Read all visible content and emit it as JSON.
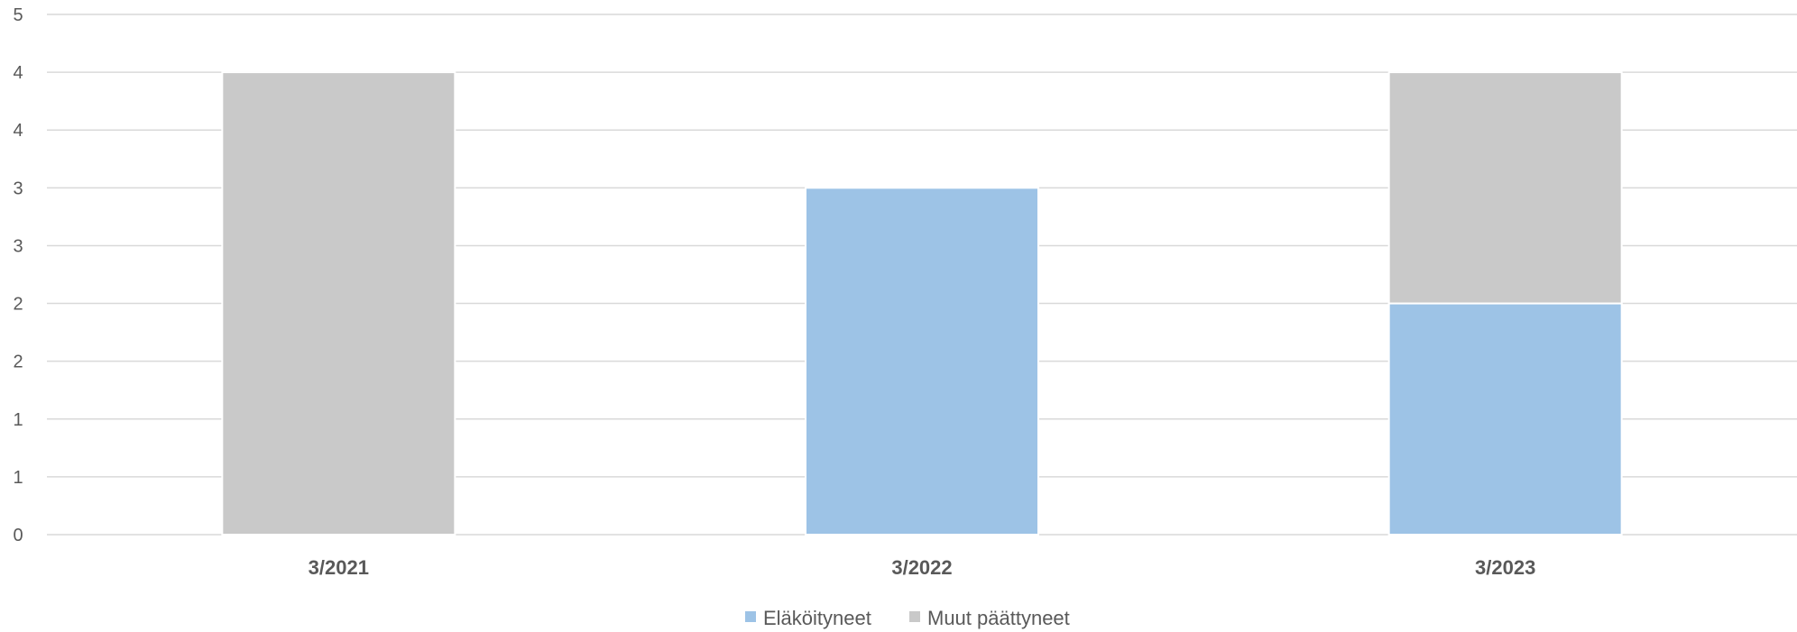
{
  "chart_data": {
    "type": "bar",
    "stacked": true,
    "categories": [
      "3/2021",
      "3/2022",
      "3/2023"
    ],
    "series": [
      {
        "name": "Eläköityneet",
        "values": [
          0,
          3,
          2
        ],
        "color": "#9DC3E6"
      },
      {
        "name": "Muut päättyneet",
        "values": [
          4,
          0,
          2
        ],
        "color": "#C9C9C9"
      }
    ],
    "ylim": [
      0,
      4.5
    ],
    "y_tick_values": [
      0,
      0.5,
      1,
      1.5,
      2,
      2.5,
      3,
      3.5,
      4,
      4.5
    ],
    "y_tick_labels": [
      "0",
      "1",
      "1",
      "2",
      "2",
      "3",
      "3",
      "4",
      "4",
      "5"
    ],
    "grid": true,
    "legend_position": "bottom",
    "gridline_color": "#D9D9D9",
    "text_color": "#595959"
  }
}
